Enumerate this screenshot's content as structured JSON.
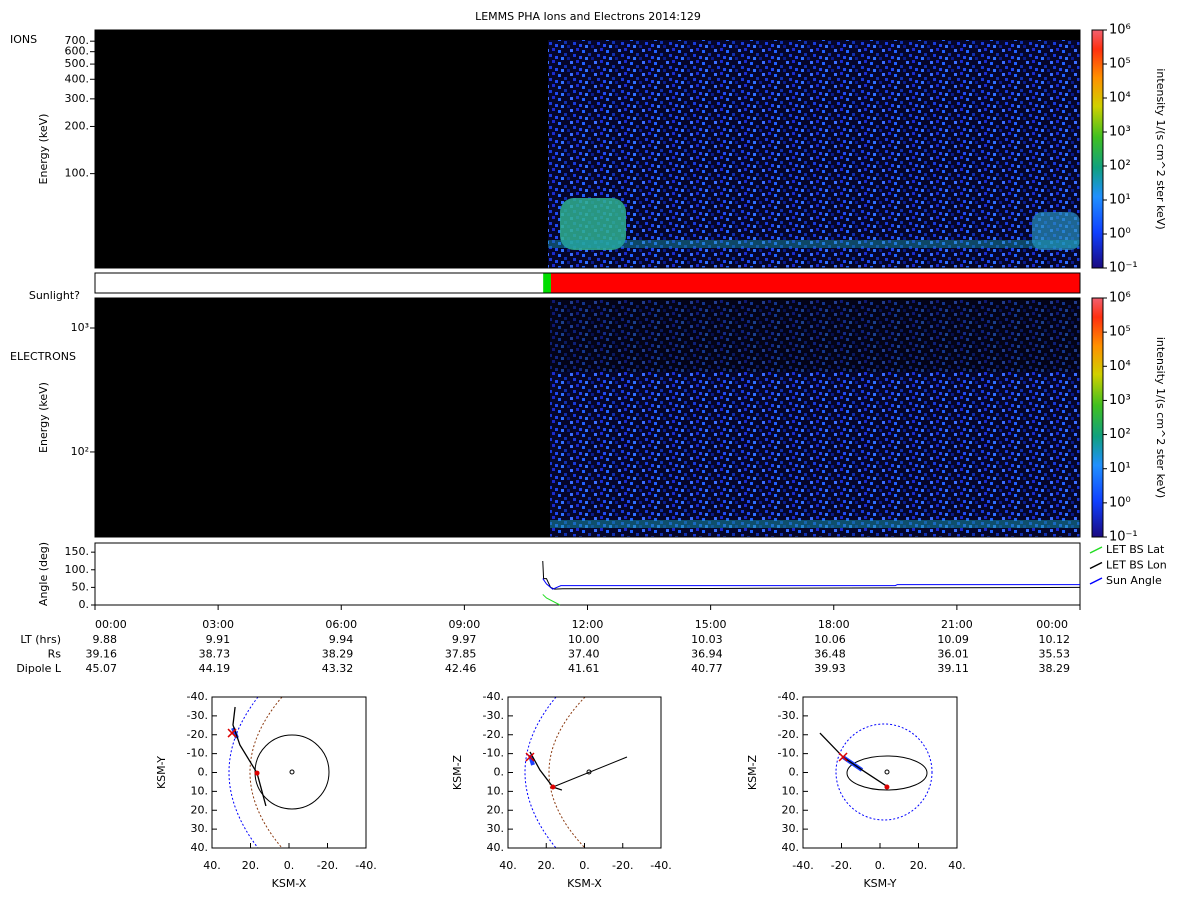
{
  "title": "LEMMS PHA Ions and Electrons  2014:129",
  "chart_data": [
    {
      "type": "spectrogram",
      "label": "IONS",
      "ylabel": "Energy (keV)",
      "log": true,
      "ylim": [
        25,
        825
      ],
      "yticks": [
        {
          "value": 100,
          "label": "100."
        },
        {
          "value": 200,
          "label": "200."
        },
        {
          "value": 300,
          "label": "300."
        },
        {
          "value": 400,
          "label": "400."
        },
        {
          "value": 500,
          "label": "500."
        },
        {
          "value": 600,
          "label": "600."
        },
        {
          "value": 700,
          "label": "700."
        }
      ],
      "colorbar": {
        "label": "intensity 1/(s cm^2 ster keV)",
        "lim": [
          0.1,
          1000000
        ],
        "ticks": [
          {
            "value": 0.1,
            "label": "10⁻¹"
          },
          {
            "value": 1,
            "label": "10⁰"
          },
          {
            "value": 10,
            "label": "10¹"
          },
          {
            "value": 100,
            "label": "10²"
          },
          {
            "value": 1000,
            "label": "10³"
          },
          {
            "value": 10000,
            "label": "10⁴"
          },
          {
            "value": 100000,
            "label": "10⁵"
          },
          {
            "value": 1000000,
            "label": "10⁶"
          }
        ]
      }
    },
    {
      "type": "state",
      "label": "Sunlight?",
      "xlim": [
        0,
        24
      ],
      "starts": [
        0,
        10.92,
        11.11
      ],
      "ends": [
        10.92,
        11.11,
        24
      ],
      "colors": [
        "#ffffff",
        "#00dd00",
        "#ff0000"
      ]
    },
    {
      "type": "spectrogram",
      "label": "ELECTRONS",
      "ylabel": "Energy (keV)",
      "log": true,
      "ylim": [
        20.6,
        1746
      ],
      "yticks": [
        {
          "value": 100,
          "label": "10²"
        },
        {
          "value": 1000,
          "label": "10³"
        }
      ],
      "colorbar": {
        "label": "intensity 1/(s cm^2 ster keV)",
        "lim": [
          0.1,
          1000000
        ],
        "ticks": [
          {
            "value": 0.1,
            "label": "10⁻¹"
          },
          {
            "value": 1,
            "label": "10⁰"
          },
          {
            "value": 10,
            "label": "10¹"
          },
          {
            "value": 100,
            "label": "10²"
          },
          {
            "value": 1000,
            "label": "10³"
          },
          {
            "value": 10000,
            "label": "10⁴"
          },
          {
            "value": 100000,
            "label": "10⁵"
          },
          {
            "value": 1000000,
            "label": "10⁶"
          }
        ]
      }
    },
    {
      "type": "line",
      "ylabel": "Angle (deg)",
      "xlim": [
        0,
        24
      ],
      "ylim": [
        0,
        176
      ],
      "yticks": [
        {
          "value": 0,
          "label": "0."
        },
        {
          "value": 50,
          "label": "50."
        },
        {
          "value": 100,
          "label": "100."
        },
        {
          "value": 150,
          "label": "150."
        }
      ],
      "xticks": [
        {
          "value": 0,
          "label": "00:00"
        },
        {
          "value": 3,
          "label": "03:00"
        },
        {
          "value": 6,
          "label": "06:00"
        },
        {
          "value": 9,
          "label": "09:00"
        },
        {
          "value": 12,
          "label": "12:00"
        },
        {
          "value": 15,
          "label": "15:00"
        },
        {
          "value": 18,
          "label": "18:00"
        },
        {
          "value": 21,
          "label": "21:00"
        },
        {
          "value": 24,
          "label": "00:00"
        }
      ],
      "series": [
        {
          "name": "LET BS Lat",
          "color": "#22dd22",
          "x": [
            10.91,
            11.0,
            11.33
          ],
          "values": [
            30,
            20,
            0
          ]
        },
        {
          "name": "LET BS Lon",
          "color": "#000000",
          "x": [
            10.91,
            10.93,
            11.0,
            11.1,
            11.2,
            11.4,
            15,
            24
          ],
          "values": [
            125,
            75,
            75,
            50,
            45,
            46,
            47,
            50
          ]
        },
        {
          "name": "Sun Angle",
          "color": "#0000ff",
          "x": [
            10.91,
            11.0,
            11.15,
            11.35,
            19.5,
            19.55,
            24
          ],
          "values": [
            75,
            60,
            45,
            55,
            55,
            58,
            58
          ]
        }
      ]
    },
    {
      "type": "orbit",
      "xlabel": "KSM-X",
      "ylabel": "KSM-Y",
      "xlim": [
        40,
        -40
      ],
      "ylim": [
        40,
        -40
      ],
      "xticks": [
        {
          "value": 40,
          "label": "40."
        },
        {
          "value": 20,
          "label": "20."
        },
        {
          "value": 0,
          "label": "0."
        },
        {
          "value": -20,
          "label": "-20."
        },
        {
          "value": -40,
          "label": "-40."
        }
      ],
      "yticks": [
        {
          "value": -40,
          "label": "-40."
        },
        {
          "value": -30,
          "label": "-30."
        },
        {
          "value": -20,
          "label": "-20."
        },
        {
          "value": -10,
          "label": "-10."
        },
        {
          "value": 0,
          "label": "0."
        },
        {
          "value": 10,
          "label": "10."
        },
        {
          "value": 20,
          "label": "20."
        },
        {
          "value": 30,
          "label": "30."
        },
        {
          "value": 40,
          "label": "40."
        }
      ],
      "trajectory": {
        "x": [
          28,
          29.1,
          25.5,
          16.6,
          12
        ],
        "y": [
          -34.7,
          -25.2,
          -14.6,
          0.3,
          17.7
        ]
      },
      "markers": {
        "x": [
          29.6,
          16.6
        ],
        "y": [
          -20.9,
          0.3
        ],
        "color": "#dd0000"
      }
    },
    {
      "type": "orbit",
      "xlabel": "KSM-X",
      "ylabel": "KSM-Z",
      "xlim": [
        40,
        -40
      ],
      "ylim": [
        40,
        -40
      ],
      "xticks": [
        {
          "value": 40,
          "label": "40."
        },
        {
          "value": 20,
          "label": "20."
        },
        {
          "value": 0,
          "label": "0."
        },
        {
          "value": -20,
          "label": "-20."
        },
        {
          "value": -40,
          "label": "-40."
        }
      ],
      "yticks": [
        {
          "value": -40,
          "label": "-40."
        },
        {
          "value": -30,
          "label": "-30."
        },
        {
          "value": -20,
          "label": "-20."
        },
        {
          "value": -10,
          "label": "-10."
        },
        {
          "value": 0,
          "label": "0."
        },
        {
          "value": 10,
          "label": "10."
        },
        {
          "value": 20,
          "label": "20."
        },
        {
          "value": 30,
          "label": "30."
        },
        {
          "value": 40,
          "label": "40."
        }
      ],
      "trajectory": {
        "x": [
          28.5,
          23.3,
          16.5,
          11.8
        ],
        "y": [
          -10.9,
          -1.3,
          7.7,
          9.3
        ]
      },
      "markers": {
        "x": [
          28.5,
          16.5
        ],
        "y": [
          -8.2,
          7.7
        ],
        "color": "#dd0000"
      }
    },
    {
      "type": "orbit",
      "xlabel": "KSM-Y",
      "ylabel": "KSM-Z",
      "xlim": [
        -40,
        40
      ],
      "ylim": [
        40,
        -40
      ],
      "xticks": [
        {
          "value": -40,
          "label": "-40."
        },
        {
          "value": -20,
          "label": "-20."
        },
        {
          "value": 0,
          "label": "0."
        },
        {
          "value": 20,
          "label": "20."
        },
        {
          "value": 40,
          "label": "40."
        }
      ],
      "yticks": [
        {
          "value": -40,
          "label": "-40."
        },
        {
          "value": -30,
          "label": "-30."
        },
        {
          "value": -20,
          "label": "-20."
        },
        {
          "value": -10,
          "label": "-10."
        },
        {
          "value": 0,
          "label": "0."
        },
        {
          "value": 10,
          "label": "10."
        },
        {
          "value": 20,
          "label": "20."
        },
        {
          "value": 30,
          "label": "30."
        },
        {
          "value": 40,
          "label": "40."
        }
      ],
      "trajectory": {
        "x": [
          -31.2,
          -19.2,
          -7.8,
          4.2
        ],
        "y": [
          -20.9,
          -8.2,
          -0.3,
          7.7
        ]
      },
      "markers": {
        "x": [
          -19.2,
          3.6
        ],
        "y": [
          -8.2,
          7.7
        ],
        "color": "#dd0000"
      }
    }
  ],
  "ephemeris": {
    "rows": [
      {
        "label": "LT (hrs)",
        "values": [
          "9.88",
          "9.91",
          "9.94",
          "9.97",
          "10.00",
          "10.03",
          "10.06",
          "10.09",
          "10.12"
        ]
      },
      {
        "label": "Rs",
        "values": [
          "39.16",
          "38.73",
          "38.29",
          "37.85",
          "37.40",
          "36.94",
          "36.48",
          "36.01",
          "35.53"
        ]
      },
      {
        "label": "Dipole L",
        "values": [
          "45.07",
          "44.19",
          "43.32",
          "42.46",
          "41.61",
          "40.77",
          "39.93",
          "39.11",
          "38.29"
        ]
      }
    ]
  }
}
